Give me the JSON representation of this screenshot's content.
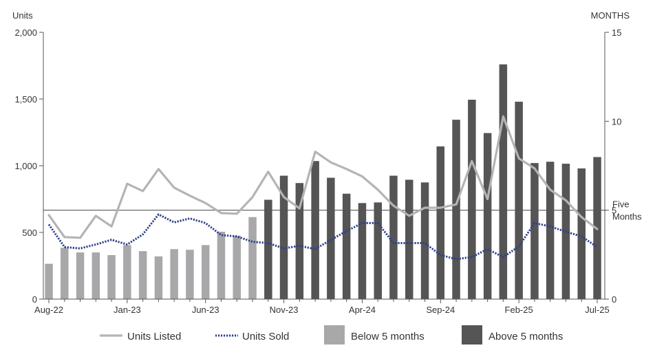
{
  "chart_data": {
    "type": "bar",
    "title": "",
    "ylabel_left": "Units",
    "ylabel_right": "MONTHS",
    "ylim_left": [
      0,
      2000
    ],
    "ylim_right": [
      0,
      15
    ],
    "yticks_left": [
      "0",
      "500",
      "1,000",
      "1,500",
      "2,000"
    ],
    "yticks_left_values": [
      0,
      500,
      1000,
      1500,
      2000
    ],
    "yticks_right": [
      "0",
      "5",
      "10",
      "15"
    ],
    "yticks_right_values": [
      0,
      5,
      10,
      15
    ],
    "grid": false,
    "legend_position": "bottom",
    "categories": [
      "Aug-22",
      "Sep-22",
      "Oct-22",
      "Nov-22",
      "Dec-22",
      "Jan-23",
      "Feb-23",
      "Mar-23",
      "Apr-23",
      "May-23",
      "Jun-23",
      "Jul-23",
      "Aug-23",
      "Sep-23",
      "Oct-23",
      "Nov-23",
      "Dec-23",
      "Jan-24",
      "Feb-24",
      "Mar-24",
      "Apr-24",
      "May-24",
      "Jun-24",
      "Jul-24",
      "Aug-24",
      "Sep-24",
      "Oct-24",
      "Nov-24",
      "Dec-24",
      "Jan-25",
      "Feb-25",
      "Mar-25",
      "Apr-25",
      "May-25",
      "Jun-25",
      "Jul-25"
    ],
    "xtick_labels": [
      {
        "index": 0,
        "label": "Aug-22"
      },
      {
        "index": 5,
        "label": "Jan-23"
      },
      {
        "index": 10,
        "label": "Jun-23"
      },
      {
        "index": 15,
        "label": "Nov-23"
      },
      {
        "index": 20,
        "label": "Apr-24"
      },
      {
        "index": 25,
        "label": "Sep-24"
      },
      {
        "index": 30,
        "label": "Feb-25"
      },
      {
        "index": 35,
        "label": "Jul-25"
      }
    ],
    "series": [
      {
        "name": "Units Listed",
        "kind": "line",
        "axis": "left",
        "color": "#b4b4b4",
        "style": "solid",
        "values": [
          630,
          465,
          460,
          625,
          545,
          865,
          810,
          975,
          835,
          775,
          720,
          645,
          640,
          765,
          955,
          765,
          680,
          1105,
          1025,
          975,
          920,
          820,
          700,
          625,
          685,
          685,
          710,
          1035,
          750,
          1370,
          1055,
          980,
          820,
          740,
          615,
          525
        ]
      },
      {
        "name": "Units Sold",
        "kind": "line",
        "axis": "left",
        "color": "#2c3f8c",
        "style": "dotted",
        "values": [
          560,
          390,
          380,
          410,
          445,
          410,
          485,
          635,
          575,
          605,
          570,
          480,
          470,
          430,
          420,
          380,
          400,
          375,
          445,
          510,
          570,
          570,
          420,
          420,
          420,
          330,
          300,
          315,
          375,
          315,
          395,
          570,
          545,
          505,
          470,
          390
        ]
      },
      {
        "name": "Below 5 months",
        "kind": "bar",
        "axis": "left",
        "color": "#a8a8aa",
        "values": [
          265,
          385,
          350,
          350,
          330,
          405,
          360,
          320,
          375,
          370,
          405,
          505,
          475,
          615,
          null,
          null,
          null,
          null,
          null,
          null,
          null,
          null,
          null,
          null,
          null,
          null,
          null,
          null,
          null,
          null,
          null,
          null,
          null,
          null,
          null,
          null
        ]
      },
      {
        "name": "Above 5 months",
        "kind": "bar",
        "axis": "left",
        "color": "#555555",
        "values": [
          null,
          null,
          null,
          null,
          null,
          null,
          null,
          null,
          null,
          null,
          null,
          null,
          null,
          null,
          745,
          925,
          870,
          1035,
          910,
          790,
          720,
          725,
          925,
          895,
          875,
          1145,
          1345,
          1495,
          1245,
          1760,
          1480,
          1020,
          1030,
          1015,
          980,
          1065
        ]
      }
    ],
    "reference_line": {
      "label_line1": "Five",
      "label_line2": "Months",
      "value_months": 5,
      "color": "#555555"
    },
    "colors": {
      "axis": "#555555",
      "text": "#333333"
    }
  }
}
